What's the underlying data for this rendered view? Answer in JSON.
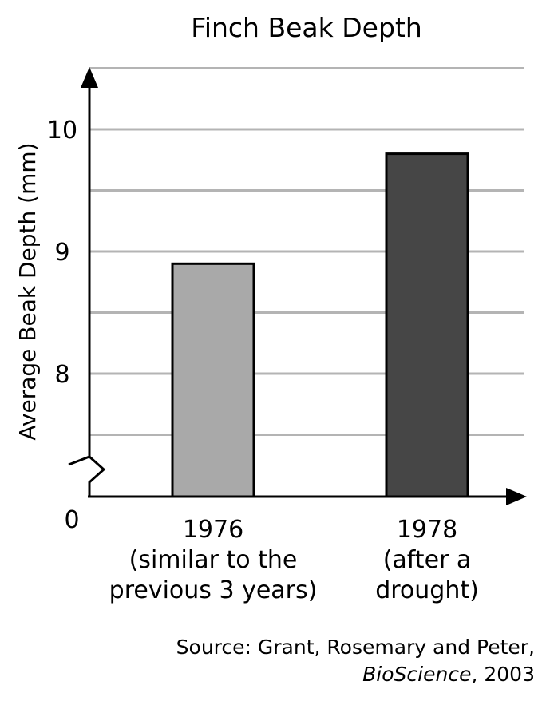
{
  "chart_data": {
    "type": "bar",
    "title": "Finch Beak Depth",
    "ylabel": "Average Beak Depth (mm)",
    "xlabel": "",
    "categories": [
      [
        "1976",
        "(similar to the",
        "previous 3 years)"
      ],
      [
        "1978",
        "(after a",
        "drought)"
      ]
    ],
    "values": [
      8.9,
      9.8
    ],
    "bar_colors": [
      "#a9a9a9",
      "#464646"
    ],
    "ylim": [
      7.0,
      10.5
    ],
    "axis_break": true,
    "y_ticks": [
      {
        "value": 8,
        "label": "8"
      },
      {
        "value": 9,
        "label": "9"
      },
      {
        "value": 10,
        "label": "10"
      }
    ],
    "y_origin_label": "0",
    "y_gridlines": [
      7.5,
      8,
      8.5,
      9,
      9.5,
      10,
      10.5
    ],
    "grid": true,
    "grid_color": "#b4b4b4"
  },
  "source": {
    "line1": "Source: Grant, Rosemary and Peter,",
    "journal": "BioScience",
    "year_text": ", 2003"
  }
}
